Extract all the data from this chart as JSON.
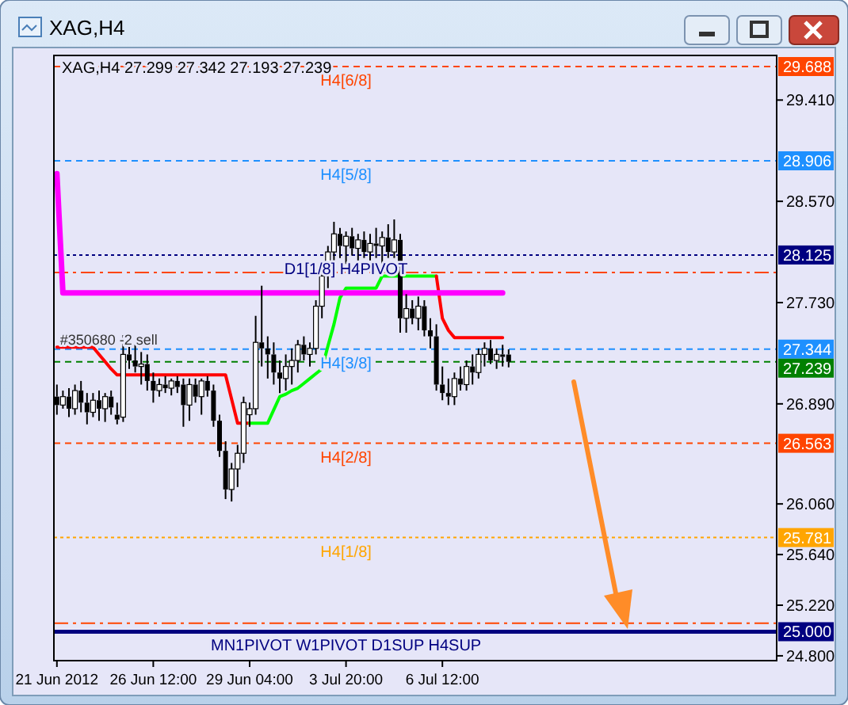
{
  "chart_data": {
    "type": "candlestick",
    "title": "XAG,H4",
    "subtitle": "XAG,H4  27.299 27.342 27.193 27.239",
    "categories": [
      "21 Jun 2012",
      null,
      null,
      null,
      null,
      null,
      null,
      null,
      null,
      null,
      null,
      null,
      null,
      null,
      null,
      null,
      "26 Jun 12:00",
      null,
      null,
      null,
      null,
      null,
      null,
      null,
      null,
      null,
      null,
      null,
      null,
      null,
      null,
      null,
      "29 Jun 04:00",
      null,
      null,
      null,
      null,
      null,
      null,
      null,
      null,
      null,
      null,
      null,
      null,
      null,
      null,
      null,
      "3 Jul 20:00",
      null,
      null,
      null,
      null,
      null,
      null,
      null,
      null,
      null,
      null,
      null,
      null,
      null,
      null,
      null,
      "6 Jul 12:00",
      null,
      null,
      null,
      null,
      null,
      null,
      null,
      null,
      null,
      null,
      null,
      null,
      null,
      null,
      null,
      null,
      null,
      null,
      null,
      null,
      null,
      null,
      null,
      null,
      null,
      null,
      null,
      null,
      null,
      null,
      null,
      null,
      null,
      null,
      null,
      null,
      null,
      null,
      null,
      null,
      null,
      null,
      null,
      null,
      null,
      null,
      null,
      null,
      null,
      null,
      null,
      null,
      null,
      null,
      null
    ],
    "ohlc": [
      [
        26.95,
        27.05,
        26.8,
        26.88
      ],
      [
        26.88,
        27.0,
        26.85,
        26.95
      ],
      [
        26.95,
        27.02,
        26.78,
        26.85
      ],
      [
        26.85,
        27.05,
        26.8,
        27.0
      ],
      [
        27.0,
        27.08,
        26.82,
        26.9
      ],
      [
        26.9,
        26.98,
        26.72,
        26.82
      ],
      [
        26.82,
        26.98,
        26.78,
        26.92
      ],
      [
        26.92,
        27.0,
        26.75,
        26.85
      ],
      [
        26.85,
        26.98,
        26.74,
        26.95
      ],
      [
        26.95,
        27.0,
        26.8,
        26.86
      ],
      [
        26.8,
        26.9,
        26.72,
        26.76
      ],
      [
        26.78,
        27.46,
        26.74,
        27.3
      ],
      [
        27.3,
        27.42,
        27.18,
        27.25
      ],
      [
        27.25,
        27.38,
        27.15,
        27.2
      ],
      [
        27.2,
        27.32,
        27.05,
        27.22
      ],
      [
        27.22,
        27.3,
        27.0,
        27.08
      ],
      [
        27.08,
        27.15,
        26.9,
        27.0
      ],
      [
        27.0,
        27.1,
        26.95,
        27.05
      ],
      [
        27.05,
        27.12,
        26.98,
        27.02
      ],
      [
        27.02,
        27.1,
        26.96,
        27.08
      ],
      [
        27.08,
        27.12,
        26.98,
        27.03
      ],
      [
        27.05,
        27.1,
        26.7,
        26.88
      ],
      [
        26.88,
        27.1,
        26.75,
        27.05
      ],
      [
        27.05,
        27.1,
        26.9,
        26.95
      ],
      [
        26.95,
        27.1,
        26.8,
        27.08
      ],
      [
        27.08,
        27.12,
        26.95,
        27.0
      ],
      [
        27.0,
        27.05,
        26.7,
        26.75
      ],
      [
        26.75,
        26.8,
        26.45,
        26.5
      ],
      [
        26.5,
        26.58,
        26.1,
        26.18
      ],
      [
        26.18,
        26.4,
        26.08,
        26.35
      ],
      [
        26.35,
        26.55,
        26.2,
        26.48
      ],
      [
        26.48,
        26.95,
        26.4,
        26.9
      ],
      [
        26.8,
        26.9,
        26.7,
        26.85
      ],
      [
        26.85,
        27.62,
        26.8,
        27.4
      ],
      [
        27.4,
        27.87,
        27.2,
        27.35
      ],
      [
        27.35,
        27.45,
        27.1,
        27.3
      ],
      [
        27.3,
        27.4,
        27.05,
        27.15
      ],
      [
        27.15,
        27.25,
        26.98,
        27.1
      ],
      [
        27.1,
        27.3,
        27.0,
        27.2
      ],
      [
        27.2,
        27.35,
        27.05,
        27.25
      ],
      [
        27.25,
        27.42,
        27.15,
        27.38
      ],
      [
        27.38,
        27.45,
        27.25,
        27.3
      ],
      [
        27.3,
        27.4,
        27.2,
        27.35
      ],
      [
        27.35,
        27.75,
        27.3,
        27.7
      ],
      [
        27.7,
        28.0,
        27.6,
        27.95
      ],
      [
        27.95,
        28.2,
        27.85,
        28.15
      ],
      [
        28.15,
        28.4,
        28.05,
        28.3
      ],
      [
        28.3,
        28.35,
        28.1,
        28.2
      ],
      [
        28.2,
        28.32,
        28.05,
        28.28
      ],
      [
        28.28,
        28.35,
        28.12,
        28.18
      ],
      [
        28.18,
        28.3,
        28.08,
        28.25
      ],
      [
        28.25,
        28.32,
        28.1,
        28.15
      ],
      [
        28.15,
        28.3,
        28.08,
        28.22
      ],
      [
        28.22,
        28.35,
        28.1,
        28.2
      ],
      [
        28.2,
        28.32,
        28.05,
        28.27
      ],
      [
        28.27,
        28.38,
        28.1,
        28.15
      ],
      [
        28.15,
        28.42,
        28.1,
        28.25
      ],
      [
        28.25,
        28.3,
        27.48,
        27.6
      ],
      [
        27.6,
        27.8,
        27.48,
        27.68
      ],
      [
        27.68,
        27.75,
        27.55,
        27.6
      ],
      [
        27.6,
        27.78,
        27.5,
        27.7
      ],
      [
        27.7,
        27.75,
        27.45,
        27.5
      ],
      [
        27.5,
        27.6,
        27.35,
        27.45
      ],
      [
        27.45,
        27.55,
        27.0,
        27.05
      ],
      [
        27.05,
        27.2,
        26.92,
        26.98
      ],
      [
        26.98,
        27.1,
        26.88,
        26.95
      ],
      [
        26.95,
        27.15,
        26.88,
        27.1
      ],
      [
        27.1,
        27.2,
        27.0,
        27.05
      ],
      [
        27.05,
        27.25,
        27.0,
        27.2
      ],
      [
        27.2,
        27.3,
        27.05,
        27.15
      ],
      [
        27.15,
        27.35,
        27.1,
        27.3
      ],
      [
        27.3,
        27.4,
        27.2,
        27.35
      ],
      [
        27.35,
        27.42,
        27.22,
        27.25
      ],
      [
        27.25,
        27.35,
        27.18,
        27.3
      ],
      [
        27.3,
        27.38,
        27.2,
        27.28
      ],
      [
        27.299,
        27.342,
        27.193,
        27.239
      ],
      null,
      null,
      null,
      null,
      null,
      null,
      null,
      null,
      null,
      null,
      null,
      null,
      null,
      null,
      null,
      null,
      null,
      null,
      null,
      null,
      null,
      null,
      null,
      null,
      null,
      null,
      null,
      null,
      null,
      null,
      null,
      null,
      null,
      null,
      null,
      null,
      null,
      null,
      null,
      null,
      null,
      null,
      null,
      null
    ],
    "series": [
      {
        "type": "line",
        "color": "#ff0000",
        "values": [
          27.36,
          27.36,
          27.36,
          27.36,
          27.36,
          27.36,
          27.36,
          27.3,
          27.24,
          27.18,
          27.13,
          27.13,
          27.13,
          27.13,
          27.13,
          27.13,
          27.13,
          27.13,
          27.13,
          27.13,
          27.13,
          27.13,
          27.13,
          27.13,
          27.13,
          27.13,
          27.13,
          27.13,
          27.13,
          26.93,
          26.73,
          26.73,
          26.73,
          null,
          null,
          null,
          null,
          null,
          null,
          null,
          null,
          null,
          null,
          null,
          null,
          null,
          null,
          null,
          null,
          null,
          null,
          null,
          null,
          null,
          null,
          null,
          null,
          null,
          null,
          null,
          null,
          null,
          null,
          null,
          null,
          null,
          null,
          null,
          null,
          null,
          null,
          null,
          null,
          null,
          null,
          null,
          null,
          null,
          null,
          null,
          null,
          null,
          null,
          null,
          null,
          null,
          null,
          null,
          null,
          null,
          null,
          null,
          null,
          null,
          null,
          null,
          null,
          null,
          null,
          null,
          null,
          null,
          null,
          null,
          null,
          null,
          null,
          null,
          null,
          null,
          null,
          null,
          null,
          null,
          null,
          null,
          null,
          null,
          null,
          null
        ]
      },
      {
        "type": "line",
        "color": "#00ff00",
        "values": [
          null,
          null,
          null,
          null,
          null,
          null,
          null,
          null,
          null,
          null,
          null,
          null,
          null,
          null,
          null,
          null,
          null,
          null,
          null,
          null,
          null,
          null,
          null,
          null,
          null,
          null,
          null,
          null,
          null,
          null,
          null,
          null,
          26.73,
          26.73,
          26.73,
          26.73,
          26.84,
          26.95,
          26.97,
          27.0,
          27.02,
          27.06,
          27.1,
          27.14,
          27.18,
          27.37,
          27.55,
          27.77,
          27.85,
          27.85,
          27.85,
          27.85,
          27.85,
          27.85,
          27.95,
          27.95,
          27.95,
          27.95,
          27.95,
          27.95,
          27.95,
          27.95,
          27.95,
          27.95,
          null,
          null,
          null,
          null,
          null,
          null,
          null,
          null,
          null,
          null,
          null,
          null,
          null,
          null,
          null,
          null,
          null,
          null,
          null,
          null,
          null,
          null,
          null,
          null,
          null,
          null,
          null,
          null,
          null,
          null,
          null,
          null,
          null,
          null,
          null,
          null,
          null,
          null,
          null,
          null,
          null,
          null,
          null,
          null,
          null,
          null,
          null,
          null,
          null,
          null,
          null,
          null,
          null,
          null,
          null,
          null
        ]
      },
      {
        "type": "line",
        "color": "#ff0000",
        "values": [
          null,
          null,
          null,
          null,
          null,
          null,
          null,
          null,
          null,
          null,
          null,
          null,
          null,
          null,
          null,
          null,
          null,
          null,
          null,
          null,
          null,
          null,
          null,
          null,
          null,
          null,
          null,
          null,
          null,
          null,
          null,
          null,
          null,
          null,
          null,
          null,
          null,
          null,
          null,
          null,
          null,
          null,
          null,
          null,
          null,
          null,
          null,
          null,
          null,
          null,
          null,
          null,
          null,
          null,
          null,
          null,
          null,
          null,
          null,
          null,
          null,
          null,
          null,
          27.95,
          27.6,
          27.5,
          27.44,
          27.44,
          27.44,
          27.44,
          27.44,
          27.44,
          27.44,
          27.44,
          27.44,
          null,
          null,
          null,
          null,
          null,
          null,
          null,
          null,
          null,
          null,
          null,
          null,
          null,
          null,
          null,
          null,
          null,
          null,
          null,
          null,
          null,
          null,
          null,
          null,
          null,
          null,
          null,
          null,
          null,
          null,
          null,
          null,
          null,
          null,
          null,
          null,
          null,
          null,
          null,
          null,
          null,
          null,
          null,
          null,
          null
        ]
      },
      {
        "type": "line",
        "color": "#ff00ff",
        "values": [
          28.8,
          27.81,
          27.81,
          27.81,
          27.81,
          27.81,
          27.81,
          27.81,
          27.81,
          27.81,
          27.81,
          27.81,
          27.81,
          27.81,
          27.81,
          27.81,
          27.81,
          27.81,
          27.81,
          27.81,
          27.81,
          27.81,
          27.81,
          27.81,
          27.81,
          27.81,
          27.81,
          27.81,
          27.81,
          27.81,
          27.81,
          27.81,
          27.81,
          27.81,
          27.81,
          27.81,
          27.81,
          27.81,
          27.81,
          27.81,
          27.81,
          27.81,
          27.81,
          27.81,
          27.81,
          27.81,
          27.81,
          27.81,
          27.81,
          27.81,
          27.81,
          27.81,
          27.81,
          27.81,
          27.81,
          27.81,
          27.81,
          27.81,
          27.81,
          27.81,
          27.81,
          27.81,
          27.81,
          27.81,
          27.81,
          27.81,
          27.81,
          27.81,
          27.81,
          27.81,
          27.81,
          27.81,
          27.81,
          27.81,
          27.81,
          null,
          null,
          null,
          null,
          null,
          null,
          null,
          null,
          null,
          null,
          null,
          null,
          null,
          null,
          null,
          null,
          null,
          null,
          null,
          null,
          null,
          null,
          null,
          null,
          null,
          null,
          null,
          null,
          null,
          null,
          null,
          null,
          null,
          null,
          null,
          null,
          null,
          null,
          null,
          null,
          null,
          null,
          null,
          null,
          null
        ]
      }
    ],
    "ylim": [
      24.76,
      29.78
    ],
    "yticks": [
      {
        "value": 29.41,
        "label": "29.410"
      },
      {
        "value": 28.57,
        "label": "28.570"
      },
      {
        "value": 27.73,
        "label": "27.730"
      },
      {
        "value": 26.89,
        "label": "26.890"
      },
      {
        "value": 26.06,
        "label": "26.060"
      },
      {
        "value": 25.64,
        "label": "25.640"
      },
      {
        "value": 25.22,
        "label": "25.220"
      },
      {
        "value": 24.8,
        "label": "24.800"
      }
    ],
    "ref_lines": [
      {
        "axis": "y",
        "value": 29.688,
        "label": "29.688",
        "color": "#ff4500",
        "line_style": "dashed"
      },
      {
        "axis": "y",
        "value": 28.906,
        "label": "28.906",
        "color": "#1e90ff",
        "line_style": "dashed"
      },
      {
        "axis": "y",
        "value": 28.125,
        "label": "28.125",
        "color": "#000080",
        "line_style": "dotted"
      },
      {
        "axis": "y",
        "value": 27.98,
        "color": "#ff4500",
        "line_style": "dashdot"
      },
      {
        "axis": "y",
        "value": 27.344,
        "label": "27.344",
        "color": "#1e90ff",
        "line_style": "dashed"
      },
      {
        "axis": "y",
        "value": 27.239,
        "label": "27.239",
        "color": "#008000",
        "line_style": "dashed"
      },
      {
        "axis": "y",
        "value": 26.563,
        "label": "26.563",
        "color": "#ff4500",
        "line_style": "dashed"
      },
      {
        "axis": "y",
        "value": 25.781,
        "label": "25.781",
        "color": "#ffa500",
        "line_style": "dotted"
      },
      {
        "axis": "y",
        "value": 25.07,
        "color": "#ff4500",
        "line_style": "dashdot"
      },
      {
        "axis": "y",
        "value": 25.0,
        "label": "25.000",
        "color": "#000080",
        "line_style": "solid"
      }
    ],
    "annotations": [
      {
        "text": "H4[6/8]",
        "y": 29.688
      },
      {
        "text": "H4[5/8]",
        "y": 28.906
      },
      {
        "text": "D1[1/8] H4PIVOT",
        "y": 28.125
      },
      {
        "text": "#350680 -2 sell",
        "x": "21 Jun 2012",
        "y": 27.344
      },
      {
        "text": "H4[3/8]",
        "y": 27.344
      },
      {
        "text": "H4[2/8]",
        "y": 26.563
      },
      {
        "text": "H4[1/8]",
        "y": 25.781
      },
      {
        "text": "MN1PIVOT W1PIVOT D1SUP H4SUP",
        "y": 25.0
      }
    ]
  }
}
